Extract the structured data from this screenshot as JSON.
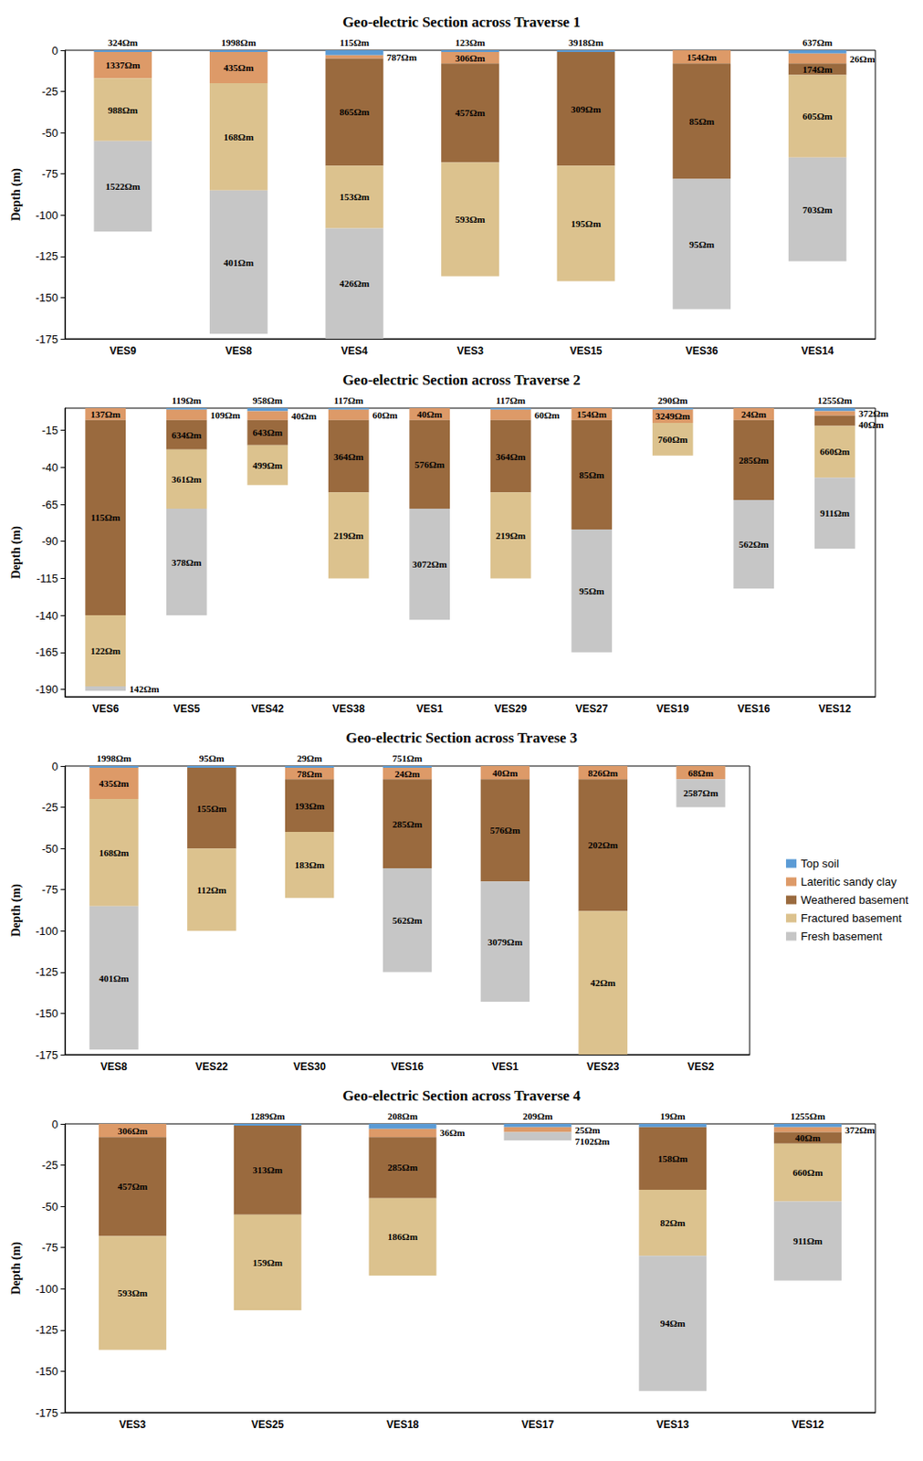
{
  "chart_data": [
    {
      "type": "bar",
      "stacked": true,
      "grid": false,
      "title": "Geo-electric Section across Traverse 1",
      "y_label": "Depth (m)",
      "categories": [
        "VES9",
        "VES8",
        "VES4",
        "VES3",
        "VES15",
        "VES36",
        "VES14"
      ],
      "ylim": [
        -175,
        0
      ],
      "yticks": [
        -175,
        -150,
        -125,
        -100,
        -75,
        -50,
        -25,
        0
      ],
      "series": [
        {
          "name": "Top soil",
          "color": "#5b9bd5",
          "values": [
            -1,
            -1,
            -3,
            -1,
            -1,
            null,
            -2
          ],
          "resistivity": [
            "324Ωm",
            "1998Ωm",
            "115Ωm",
            "123Ωm",
            "3918Ωm",
            null,
            "637Ωm"
          ]
        },
        {
          "name": "Lateritic sandy clay",
          "color": "#dd9a68",
          "values": [
            -16,
            -19,
            -2,
            -7,
            null,
            -8,
            -6
          ],
          "resistivity": [
            "1337Ωm",
            "435Ωm",
            "787Ωm",
            "306Ωm",
            null,
            "154Ωm",
            "26Ωm"
          ]
        },
        {
          "name": "Weathered basement",
          "color": "#9a6a3e",
          "values": [
            null,
            null,
            -65,
            -60,
            -69,
            -70,
            -7
          ],
          "resistivity": [
            null,
            null,
            "865Ωm",
            "457Ωm",
            "309Ωm",
            "85Ωm",
            "174Ωm"
          ]
        },
        {
          "name": "Fractured basement",
          "color": "#dcc28e",
          "values": [
            -38,
            -65,
            -38,
            -69,
            -70,
            null,
            -50
          ],
          "resistivity": [
            "988Ωm",
            "168Ωm",
            "153Ωm",
            "593Ωm",
            "195Ωm",
            null,
            "605Ωm"
          ]
        },
        {
          "name": "Fresh basement",
          "color": "#c6c6c6",
          "values": [
            -55,
            -87,
            -67,
            null,
            null,
            -79,
            -63
          ],
          "resistivity": [
            "1522Ωm",
            "401Ωm",
            "426Ωm",
            null,
            null,
            "95Ωm",
            "703Ωm"
          ]
        }
      ]
    },
    {
      "type": "bar",
      "stacked": true,
      "grid": false,
      "title": "Geo-electric Section across Traverse 2",
      "y_label": "Depth (m)",
      "categories": [
        "VES6",
        "VES5",
        "VES42",
        "VES38",
        "VES1",
        "VES29",
        "VES27",
        "VES19",
        "VES16",
        "VES12"
      ],
      "ylim": [
        -195,
        0
      ],
      "yticks": [
        -190,
        -165,
        -140,
        -115,
        -90,
        -65,
        -40,
        -15
      ],
      "series": [
        {
          "name": "Top soil",
          "color": "#5b9bd5",
          "values": [
            null,
            -1,
            -2,
            -1,
            null,
            -1,
            null,
            -1,
            null,
            -2
          ],
          "resistivity": [
            null,
            "119Ωm",
            "958Ωm",
            "117Ωm",
            null,
            "117Ωm",
            null,
            "290Ωm",
            null,
            "1255Ωm"
          ]
        },
        {
          "name": "Lateritic sandy clay",
          "color": "#dd9a68",
          "values": [
            -8,
            -7,
            -6,
            -7,
            -8,
            -7,
            -8,
            -9,
            -8,
            -3
          ],
          "resistivity": [
            "137Ωm",
            "109Ωm",
            "40Ωm",
            "60Ωm",
            "40Ωm",
            "60Ωm",
            "154Ωm",
            "3249Ωm",
            "24Ωm",
            "372Ωm"
          ]
        },
        {
          "name": "Weathered basement",
          "color": "#9a6a3e",
          "values": [
            -132,
            -20,
            -17,
            -49,
            -60,
            -49,
            -74,
            null,
            -54,
            -7
          ],
          "resistivity": [
            "115Ωm",
            "634Ωm",
            "643Ωm",
            "364Ωm",
            "576Ωm",
            "364Ωm",
            "85Ωm",
            null,
            "285Ωm",
            "40Ωm"
          ]
        },
        {
          "name": "Fractured basement",
          "color": "#dcc28e",
          "values": [
            -48,
            -40,
            -27,
            -58,
            null,
            -58,
            null,
            -22,
            null,
            -35
          ],
          "resistivity": [
            "122Ωm",
            "361Ωm",
            "499Ωm",
            "219Ωm",
            null,
            "219Ωm",
            null,
            "760Ωm",
            null,
            "660Ωm"
          ]
        },
        {
          "name": "Fresh basement",
          "color": "#c6c6c6",
          "values": [
            -3,
            -72,
            null,
            null,
            -75,
            null,
            -83,
            null,
            -60,
            -48
          ],
          "resistivity": [
            "142Ωm",
            "378Ωm",
            null,
            null,
            "3072Ωm",
            null,
            "95Ωm",
            null,
            "562Ωm",
            "911Ωm"
          ]
        }
      ]
    },
    {
      "type": "bar",
      "stacked": true,
      "grid": false,
      "legend": "right",
      "title": "Geo-electric Section across Travese 3",
      "y_label": "Depth (m)",
      "categories": [
        "VES8",
        "VES22",
        "VES30",
        "VES16",
        "VES1",
        "VES23",
        "VES2"
      ],
      "ylim": [
        -175,
        0
      ],
      "yticks": [
        -175,
        -150,
        -125,
        -100,
        -75,
        -50,
        -25,
        0
      ],
      "series": [
        {
          "name": "Top soil",
          "color": "#5b9bd5",
          "values": [
            -1,
            -1,
            -1,
            -1,
            null,
            null,
            null
          ],
          "resistivity": [
            "1998Ωm",
            "95Ωm",
            "29Ωm",
            "751Ωm",
            null,
            null,
            null
          ]
        },
        {
          "name": "Lateritic sandy clay",
          "color": "#dd9a68",
          "values": [
            -19,
            null,
            -7,
            -7,
            -8,
            -8,
            -8
          ],
          "resistivity": [
            "435Ωm",
            null,
            "78Ωm",
            "24Ωm",
            "40Ωm",
            "826Ωm",
            "68Ωm"
          ]
        },
        {
          "name": "Weathered basement",
          "color": "#9a6a3e",
          "values": [
            null,
            -49,
            -32,
            -54,
            -62,
            -80,
            null
          ],
          "resistivity": [
            null,
            "155Ωm",
            "193Ωm",
            "285Ωm",
            "576Ωm",
            "202Ωm",
            null
          ]
        },
        {
          "name": "Fractured basement",
          "color": "#dcc28e",
          "values": [
            -65,
            -50,
            -40,
            null,
            null,
            -87,
            null
          ],
          "resistivity": [
            "168Ωm",
            "112Ωm",
            "183Ωm",
            null,
            null,
            "42Ωm",
            null
          ]
        },
        {
          "name": "Fresh basement",
          "color": "#c6c6c6",
          "values": [
            -87,
            null,
            null,
            -63,
            -73,
            null,
            -17
          ],
          "resistivity": [
            "401Ωm",
            null,
            null,
            "562Ωm",
            "3079Ωm",
            null,
            "2587Ωm"
          ]
        }
      ]
    },
    {
      "type": "bar",
      "stacked": true,
      "grid": false,
      "title": "Geo-electric Section across Traverse 4",
      "y_label": "Depth (m)",
      "categories": [
        "VES3",
        "VES25",
        "VES18",
        "VES17",
        "VES13",
        "VES12"
      ],
      "ylim": [
        -175,
        0
      ],
      "yticks": [
        -175,
        -150,
        -125,
        -100,
        -75,
        -50,
        -25,
        0
      ],
      "series": [
        {
          "name": "Top soil",
          "color": "#5b9bd5",
          "values": [
            null,
            -1,
            -3,
            -2,
            -2,
            -2
          ],
          "resistivity": [
            null,
            "1289Ωm",
            "208Ωm",
            "209Ωm",
            "19Ωm",
            "1255Ωm"
          ]
        },
        {
          "name": "Lateritic sandy clay",
          "color": "#dd9a68",
          "values": [
            -8,
            null,
            -5,
            -3,
            null,
            -3
          ],
          "resistivity": [
            "306Ωm",
            null,
            "36Ωm",
            "25Ωm",
            null,
            "372Ωm"
          ]
        },
        {
          "name": "Weathered basement",
          "color": "#9a6a3e",
          "values": [
            -60,
            -54,
            -37,
            null,
            -38,
            -7
          ],
          "resistivity": [
            "457Ωm",
            "313Ωm",
            "285Ωm",
            null,
            "158Ωm",
            "40Ωm"
          ]
        },
        {
          "name": "Fractured basement",
          "color": "#dcc28e",
          "values": [
            -69,
            -58,
            -47,
            null,
            -40,
            -35
          ],
          "resistivity": [
            "593Ωm",
            "159Ωm",
            "186Ωm",
            null,
            "82Ωm",
            "660Ωm"
          ]
        },
        {
          "name": "Fresh basement",
          "color": "#c6c6c6",
          "values": [
            null,
            null,
            null,
            -5,
            -82,
            -48
          ],
          "resistivity": [
            null,
            null,
            null,
            "7102Ωm",
            "94Ωm",
            "911Ωm"
          ]
        }
      ]
    }
  ]
}
